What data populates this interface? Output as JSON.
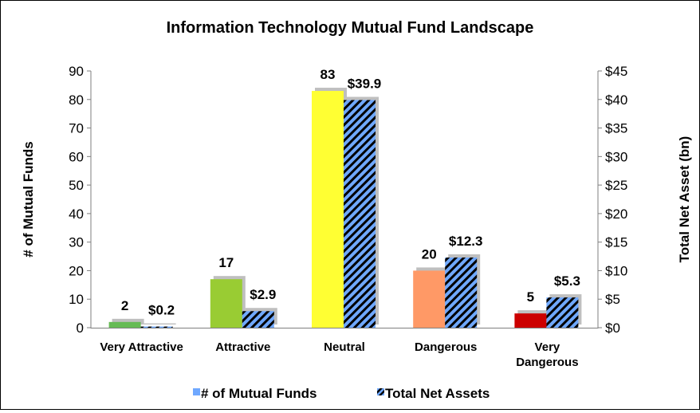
{
  "chart_data": {
    "type": "bar",
    "title": "Information Technology Mutual Fund Landscape",
    "categories": [
      "Very Attractive",
      "Attractive",
      "Neutral",
      "Dangerous",
      "Very Dangerous"
    ],
    "category_lines": [
      [
        "Very Attractive"
      ],
      [
        "Attractive"
      ],
      [
        "Neutral"
      ],
      [
        "Dangerous"
      ],
      [
        "Very",
        "Dangerous"
      ]
    ],
    "series": [
      {
        "name": "# of Mutual Funds",
        "axis": "left",
        "values": [
          2,
          17,
          83,
          20,
          5
        ],
        "labels": [
          "2",
          "17",
          "83",
          "20",
          "5"
        ],
        "colors": [
          "#66bb55",
          "#99cc33",
          "#ffff33",
          "#ff9966",
          "#cc0000"
        ]
      },
      {
        "name": "Total Net Assets",
        "axis": "right",
        "values": [
          0.2,
          2.9,
          39.9,
          12.3,
          5.3
        ],
        "labels": [
          "$0.2",
          "$2.9",
          "$39.9",
          "$12.3",
          "$5.3"
        ],
        "pattern_colors": [
          "#6fa8ff",
          "#000000"
        ]
      }
    ],
    "ylabel_left": "# of Mutual Funds",
    "ylabel_right": "Total Net Asset (bn)",
    "ylim_left": [
      0,
      90
    ],
    "ylim_right": [
      0,
      45
    ],
    "yticks_left": [
      "0",
      "10",
      "20",
      "30",
      "40",
      "50",
      "60",
      "70",
      "80",
      "90"
    ],
    "yticks_right": [
      "$0",
      "$5",
      "$10",
      "$15",
      "$20",
      "$25",
      "$30",
      "$35",
      "$40",
      "$45"
    ],
    "grid": false,
    "legend": {
      "position": "bottom",
      "entries": [
        "# of Mutual Funds",
        "Total Net Assets"
      ],
      "swatch_colors": [
        "#6fa8ff",
        "#000000"
      ]
    }
  }
}
